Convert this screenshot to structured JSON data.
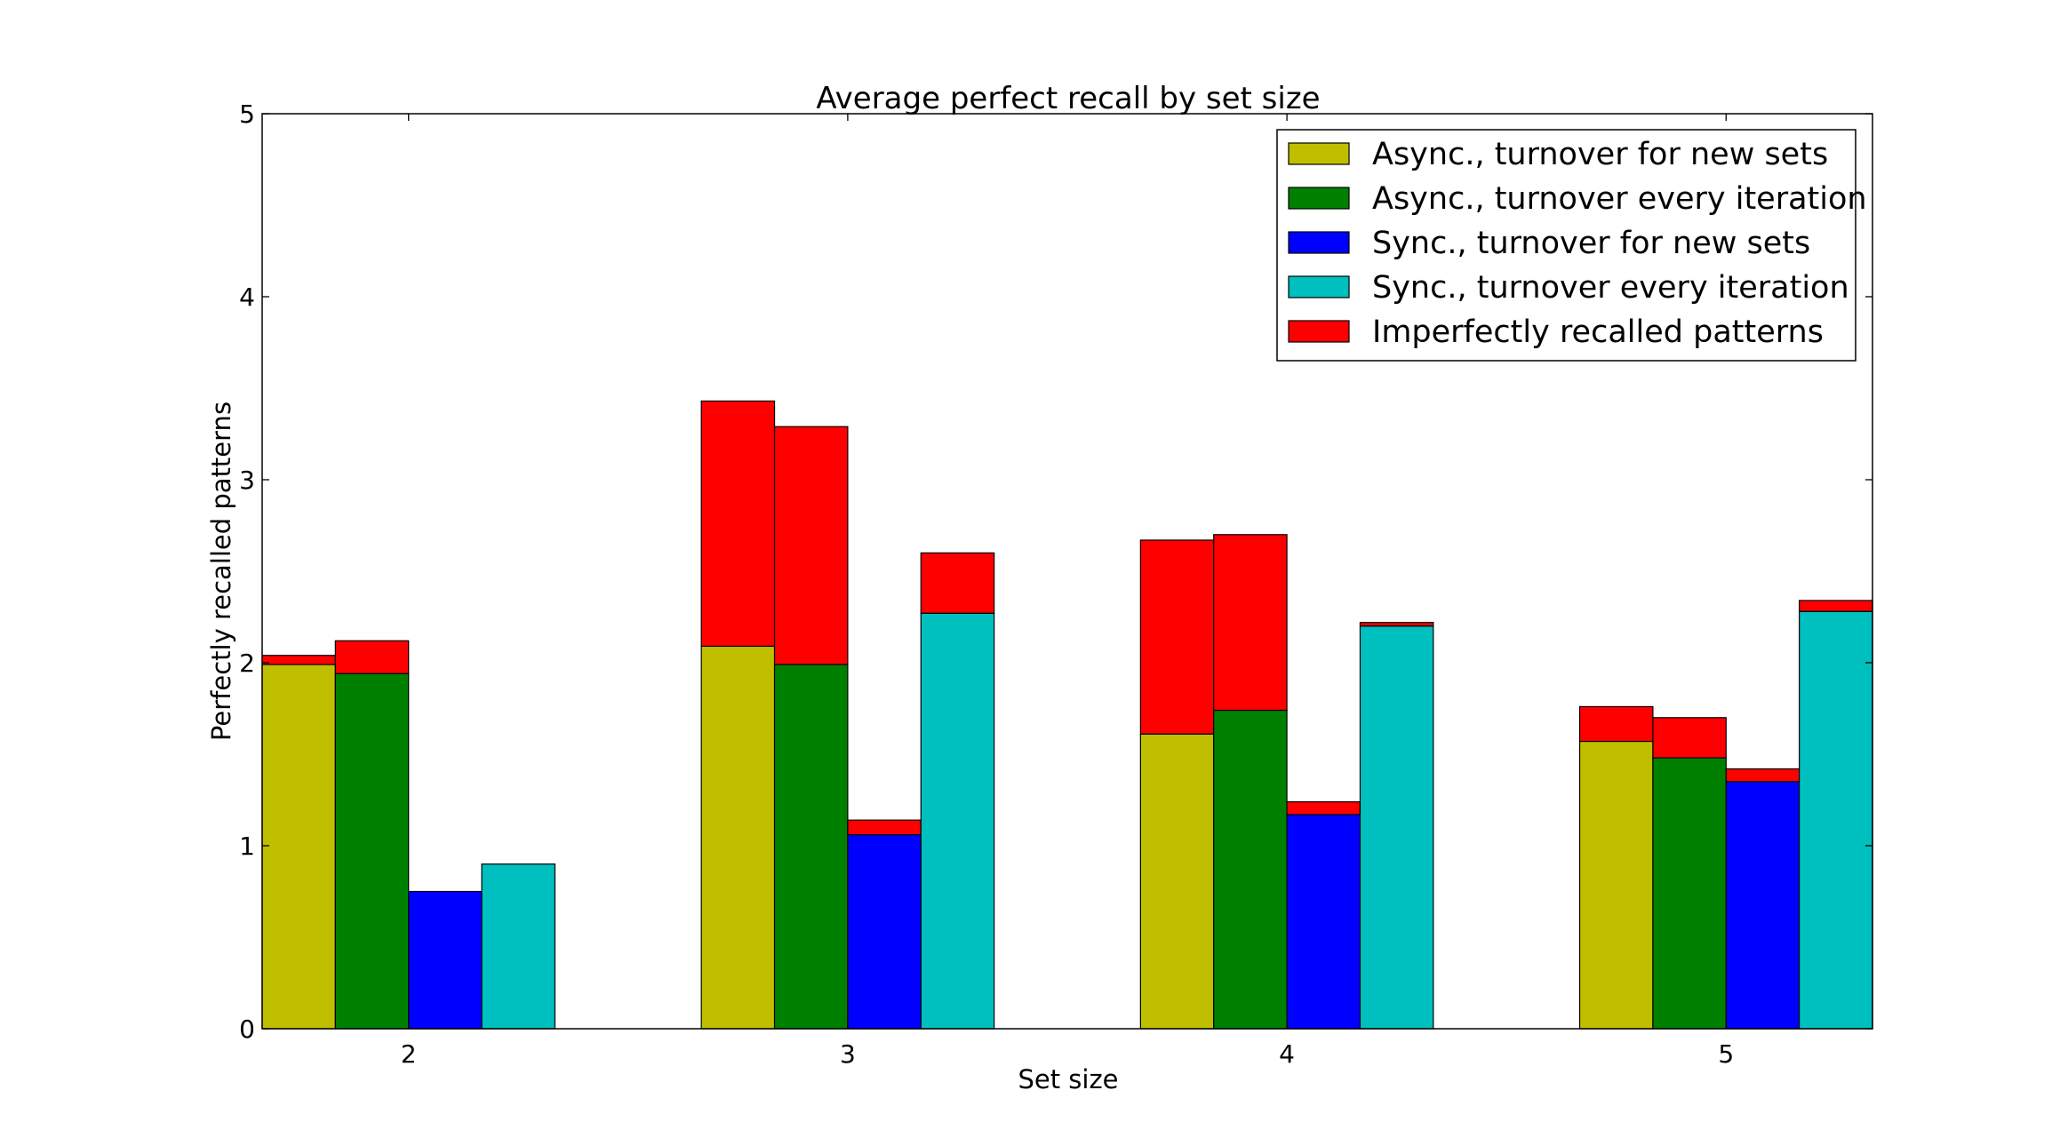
{
  "chart_data": {
    "type": "bar",
    "title": "Average perfect recall by set size",
    "xlabel": "Set size",
    "ylabel": "Perfectly recalled patterns",
    "ylim": [
      0,
      5
    ],
    "yticks": [
      "0",
      "1",
      "2",
      "3",
      "4",
      "5"
    ],
    "categories": [
      "2",
      "3",
      "4",
      "5"
    ],
    "grid": false,
    "legend_position": "top-right",
    "series": [
      {
        "name": "Async., turnover for new sets",
        "color": "#bfbf00",
        "values": [
          1.99,
          2.09,
          1.61,
          1.57
        ],
        "imperfect": [
          0.05,
          1.34,
          1.06,
          0.19
        ]
      },
      {
        "name": "Async., turnover every iteration",
        "color": "#008000",
        "values": [
          1.94,
          1.99,
          1.74,
          1.48
        ],
        "imperfect": [
          0.18,
          1.3,
          0.96,
          0.22
        ]
      },
      {
        "name": "Sync., turnover for new sets",
        "color": "#0000ff",
        "values": [
          0.75,
          1.06,
          1.17,
          1.35
        ],
        "imperfect": [
          0,
          0.08,
          0.07,
          0.07
        ]
      },
      {
        "name": "Sync., turnover every iteration",
        "color": "#00bfbf",
        "values": [
          0.9,
          2.27,
          2.2,
          2.28
        ],
        "imperfect": [
          0,
          0.33,
          0.02,
          0.06
        ]
      }
    ],
    "imperfect_series": {
      "name": "Imperfectly recalled patterns",
      "color": "#ff0000"
    }
  }
}
